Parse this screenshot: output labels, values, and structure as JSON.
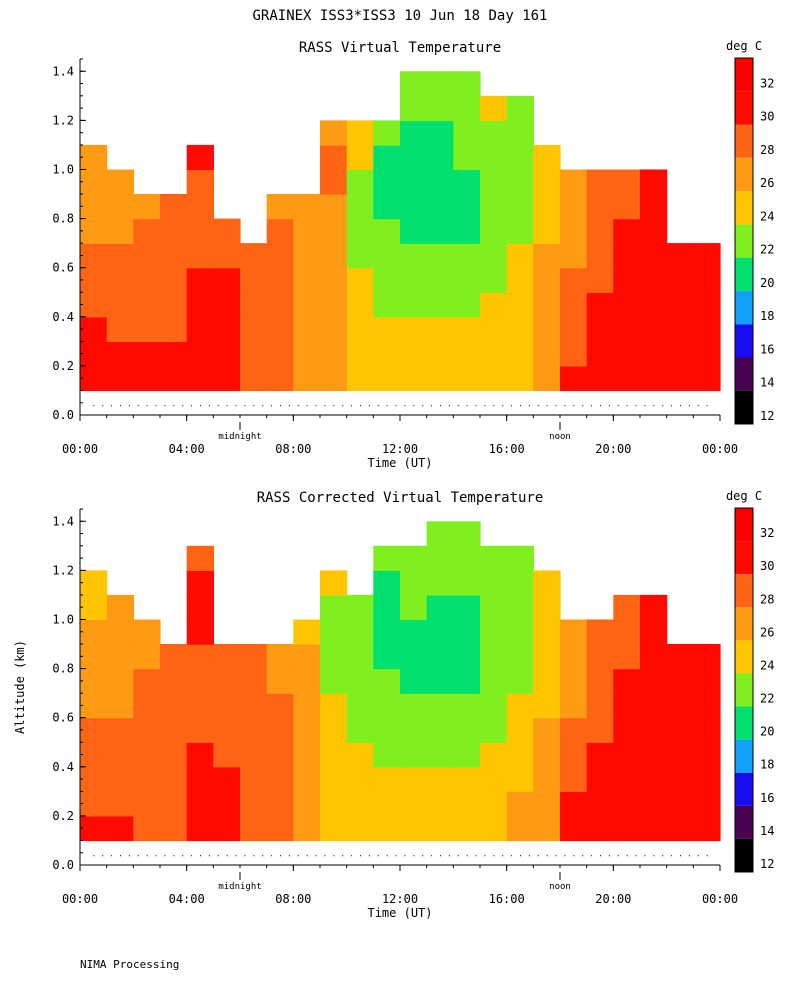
{
  "page_title": "GRAINEX ISS3*ISS3  10 Jun 18 Day 161",
  "footer": "NIMA Processing",
  "colorbar": {
    "unit": "deg C",
    "bands": [
      {
        "from": 12,
        "to": 14,
        "color": "#000000"
      },
      {
        "from": 14,
        "to": 16,
        "color": "#4a0050"
      },
      {
        "from": 16,
        "to": 18,
        "color": "#1a0cf2"
      },
      {
        "from": 18,
        "to": 20,
        "color": "#14a0ff"
      },
      {
        "from": 20,
        "to": 22,
        "color": "#00e06e"
      },
      {
        "from": 22,
        "to": 24,
        "color": "#7ff01e"
      },
      {
        "from": 24,
        "to": 26,
        "color": "#ffc500"
      },
      {
        "from": 26,
        "to": 28,
        "color": "#ff9a14"
      },
      {
        "from": 28,
        "to": 30,
        "color": "#ff6414"
      },
      {
        "from": 30,
        "to": 32,
        "color": "#ff0a00"
      },
      {
        "from": 32,
        "to": 34,
        "color": "#ff0000"
      }
    ],
    "ticks": [
      "12",
      "14",
      "16",
      "18",
      "20",
      "22",
      "24",
      "26",
      "28",
      "30",
      "32"
    ]
  },
  "chart_data": [
    {
      "type": "heatmap",
      "title": "RASS Virtual Temperature",
      "xlabel": "Time (UT)",
      "ylabel": "",
      "x_ticks": [
        "00:00",
        "04:00",
        "08:00",
        "12:00",
        "16:00",
        "20:00",
        "00:00"
      ],
      "y_ticks": [
        "0.0",
        "0.2",
        "0.4",
        "0.6",
        "0.8",
        "1.0",
        "1.2",
        "1.4"
      ],
      "xlim_hours": [
        0,
        24
      ],
      "ylim_km": [
        0,
        1.45
      ],
      "markers": [
        {
          "label": "midnight",
          "hour": 6
        },
        {
          "label": "noon",
          "hour": 18
        }
      ],
      "times_h": [
        0.5,
        1.5,
        2.5,
        3.5,
        4.5,
        5.5,
        6.5,
        7.5,
        8.5,
        9.5,
        10.5,
        11.5,
        12.5,
        13.5,
        14.5,
        15.5,
        16.5,
        17.5,
        18.5,
        19.5,
        20.5,
        21.5,
        22.5,
        23.5
      ],
      "altitudes_km": [
        0.15,
        0.25,
        0.35,
        0.45,
        0.55,
        0.65,
        0.75,
        0.85,
        0.95,
        1.05,
        1.15,
        1.25,
        1.35
      ],
      "top_km": [
        1.05,
        0.95,
        0.85,
        0.85,
        1.1,
        0.8,
        0.65,
        0.85,
        0.9,
        1.15,
        1.2,
        1.2,
        1.4,
        1.4,
        1.4,
        1.3,
        1.25,
        1.1,
        1.0,
        1.0,
        1.0,
        1.0,
        0.7,
        0.7
      ],
      "values_degC": [
        [
          31,
          31,
          31,
          30,
          31,
          31,
          29,
          28,
          27,
          26,
          25,
          25,
          25,
          25,
          24,
          25,
          25,
          27,
          30,
          31,
          31,
          31,
          31,
          31
        ],
        [
          31,
          30,
          30,
          30,
          31,
          30,
          29,
          28,
          27,
          26,
          25,
          25,
          25,
          24,
          24,
          24,
          25,
          27,
          29,
          31,
          31,
          31,
          31,
          31
        ],
        [
          30,
          29,
          29,
          29,
          31,
          31,
          29,
          28,
          27,
          26,
          25,
          24,
          24,
          24,
          24,
          24,
          25,
          26,
          28,
          30,
          31,
          31,
          31,
          31
        ],
        [
          29,
          29,
          28,
          29,
          31,
          31,
          29,
          28,
          27,
          26,
          24,
          23,
          23,
          23,
          23,
          24,
          25,
          26,
          28,
          30,
          31,
          31,
          31,
          31
        ],
        [
          29,
          28,
          28,
          28,
          30,
          30,
          29,
          28,
          27,
          26,
          24,
          23,
          23,
          23,
          23,
          23,
          24,
          26,
          28,
          29,
          30,
          31,
          31,
          31
        ],
        [
          28,
          28,
          28,
          28,
          29,
          29,
          29,
          28,
          27,
          26,
          23,
          23,
          22,
          22,
          22,
          23,
          24,
          26,
          27,
          28,
          30,
          31,
          31,
          31
        ],
        [
          27,
          27,
          28,
          28,
          29,
          29,
          28,
          28,
          27,
          26,
          23,
          22,
          21,
          21,
          21,
          22,
          23,
          25,
          27,
          28,
          30,
          31,
          31,
          31
        ],
        [
          27,
          27,
          27,
          28,
          28,
          28,
          28,
          27,
          27,
          27,
          23,
          21,
          21,
          21,
          21,
          22,
          23,
          25,
          26,
          28,
          29,
          31,
          31,
          31
        ],
        [
          26,
          27,
          27,
          28,
          28,
          28,
          28,
          27,
          27,
          28,
          23,
          21,
          21,
          21,
          21,
          22,
          23,
          24,
          26,
          28,
          29,
          31,
          31,
          31
        ],
        [
          26,
          26,
          27,
          28,
          30,
          28,
          28,
          27,
          27,
          28,
          24,
          21,
          21,
          21,
          22,
          22,
          22,
          24,
          26,
          28,
          29,
          31,
          31,
          31
        ],
        [
          26,
          26,
          27,
          28,
          31,
          28,
          28,
          27,
          27,
          27,
          24,
          22,
          21,
          21,
          22,
          22,
          23,
          24,
          26,
          27,
          29,
          31,
          31,
          31
        ],
        [
          26,
          26,
          27,
          28,
          30,
          28,
          28,
          27,
          27,
          27,
          24,
          22,
          22,
          22,
          23,
          24,
          23,
          24,
          26,
          27,
          29,
          31,
          31,
          31
        ],
        [
          26,
          26,
          27,
          28,
          30,
          28,
          28,
          27,
          27,
          27,
          24,
          22,
          22,
          22,
          23,
          24,
          23,
          24,
          26,
          27,
          29,
          31,
          31,
          31
        ]
      ]
    },
    {
      "type": "heatmap",
      "title": "RASS Corrected Virtual Temperature",
      "xlabel": "Time (UT)",
      "ylabel": "Altitude (km)",
      "x_ticks": [
        "00:00",
        "04:00",
        "08:00",
        "12:00",
        "16:00",
        "20:00",
        "00:00"
      ],
      "y_ticks": [
        "0.0",
        "0.2",
        "0.4",
        "0.6",
        "0.8",
        "1.0",
        "1.2",
        "1.4"
      ],
      "xlim_hours": [
        0,
        24
      ],
      "ylim_km": [
        0,
        1.45
      ],
      "markers": [
        {
          "label": "midnight",
          "hour": 6
        },
        {
          "label": "noon",
          "hour": 18
        }
      ],
      "times_h": [
        0.5,
        1.5,
        2.5,
        3.5,
        4.5,
        5.5,
        6.5,
        7.5,
        8.5,
        9.5,
        10.5,
        11.5,
        12.5,
        13.5,
        14.5,
        15.5,
        16.5,
        17.5,
        18.5,
        19.5,
        20.5,
        21.5,
        22.5,
        23.5
      ],
      "altitudes_km": [
        0.15,
        0.25,
        0.35,
        0.45,
        0.55,
        0.65,
        0.75,
        0.85,
        0.95,
        1.05,
        1.15,
        1.25,
        1.35
      ],
      "top_km": [
        1.2,
        1.05,
        0.95,
        0.85,
        1.25,
        0.9,
        0.85,
        0.85,
        0.95,
        1.2,
        1.1,
        1.25,
        1.25,
        1.45,
        1.35,
        1.3,
        1.3,
        1.15,
        1.0,
        1.0,
        1.1,
        1.1,
        0.85,
        0.85
      ],
      "values_degC": [
        [
          30,
          30,
          29,
          29,
          30,
          30,
          29,
          28,
          27,
          25,
          25,
          25,
          25,
          25,
          25,
          24,
          26,
          27,
          30,
          31,
          31,
          31,
          31,
          31
        ],
        [
          29,
          29,
          29,
          29,
          30,
          30,
          29,
          28,
          27,
          25,
          24,
          24,
          24,
          24,
          24,
          24,
          26,
          27,
          30,
          31,
          31,
          31,
          31,
          31
        ],
        [
          29,
          28,
          28,
          29,
          30,
          30,
          29,
          28,
          26,
          25,
          24,
          24,
          24,
          24,
          24,
          24,
          25,
          26,
          28,
          30,
          31,
          31,
          31,
          31
        ],
        [
          28,
          28,
          28,
          29,
          30,
          29,
          29,
          28,
          26,
          25,
          24,
          23,
          23,
          23,
          23,
          24,
          25,
          26,
          28,
          30,
          31,
          31,
          31,
          31
        ],
        [
          28,
          28,
          28,
          29,
          29,
          29,
          29,
          28,
          26,
          24,
          23,
          23,
          23,
          23,
          23,
          23,
          24,
          26,
          28,
          29,
          30,
          31,
          31,
          31
        ],
        [
          27,
          27,
          28,
          28,
          29,
          29,
          28,
          28,
          26,
          24,
          23,
          22,
          22,
          22,
          22,
          23,
          24,
          25,
          27,
          29,
          30,
          31,
          31,
          31
        ],
        [
          27,
          27,
          28,
          28,
          29,
          29,
          28,
          27,
          26,
          23,
          22,
          22,
          21,
          21,
          21,
          22,
          23,
          25,
          27,
          28,
          30,
          31,
          31,
          31
        ],
        [
          26,
          27,
          27,
          28,
          29,
          29,
          28,
          27,
          26,
          23,
          22,
          21,
          21,
          21,
          21,
          22,
          23,
          25,
          27,
          28,
          29,
          30,
          31,
          31
        ],
        [
          26,
          26,
          27,
          28,
          30,
          28,
          28,
          27,
          25,
          23,
          22,
          21,
          21,
          21,
          21,
          22,
          23,
          24,
          26,
          28,
          29,
          30,
          31,
          31
        ],
        [
          25,
          26,
          27,
          28,
          30,
          28,
          28,
          27,
          25,
          23,
          22,
          21,
          22,
          21,
          21,
          22,
          22,
          24,
          26,
          28,
          29,
          30,
          31,
          31
        ],
        [
          25,
          26,
          27,
          28,
          31,
          28,
          28,
          27,
          25,
          24,
          23,
          21,
          22,
          22,
          22,
          23,
          23,
          24,
          26,
          27,
          29,
          31,
          31,
          31
        ],
        [
          25,
          26,
          27,
          28,
          29,
          28,
          28,
          27,
          25,
          24,
          23,
          22,
          22,
          22,
          22,
          23,
          23,
          24,
          26,
          27,
          29,
          31,
          31,
          31
        ],
        [
          25,
          26,
          27,
          28,
          29,
          28,
          28,
          27,
          25,
          24,
          23,
          22,
          22,
          22,
          22,
          23,
          23,
          24,
          26,
          27,
          29,
          31,
          31,
          31
        ]
      ]
    }
  ]
}
